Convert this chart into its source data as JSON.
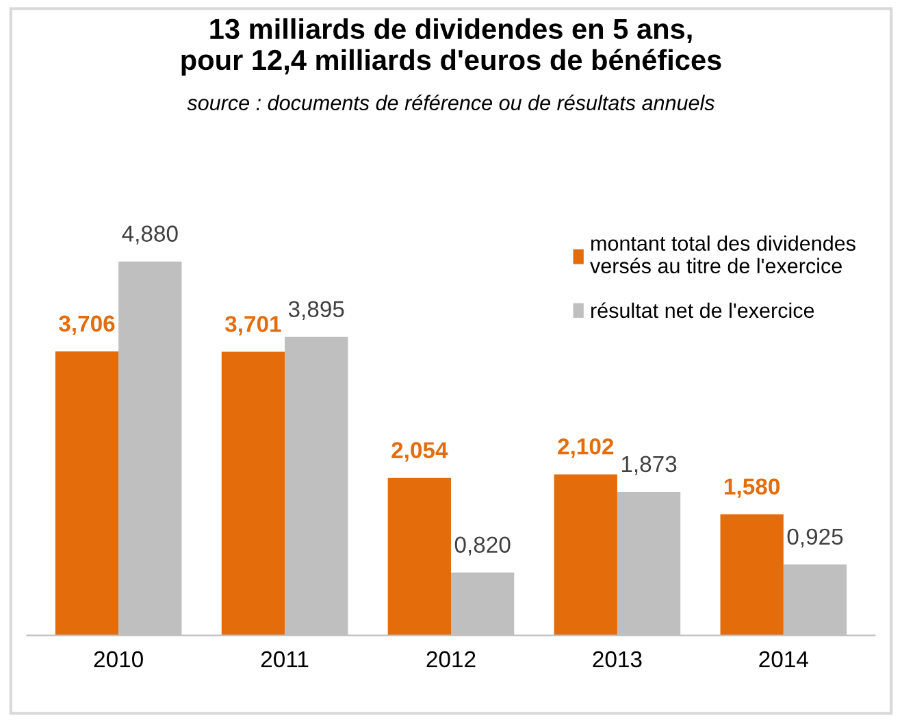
{
  "chart_data": {
    "type": "bar",
    "title": "13 milliards de dividendes en 5 ans,\npour 12,4 milliards d'euros de bénéfices",
    "subtitle": "source : documents de référence ou de résultats annuels",
    "categories": [
      "2010",
      "2011",
      "2012",
      "2013",
      "2014"
    ],
    "series": [
      {
        "name": "montant total des dividendes\nversés au titre de l'exercice",
        "color": "#e46c0a",
        "values": [
          3.706,
          3.701,
          2.054,
          2.102,
          1.58
        ],
        "value_labels": [
          "3,706",
          "3,701",
          "2,054",
          "2,102",
          "1,580"
        ]
      },
      {
        "name": "résultat net de l'exercice",
        "color": "#bfbfbf",
        "values": [
          4.88,
          3.895,
          0.82,
          1.873,
          0.925
        ],
        "value_labels": [
          "4,880",
          "3,895",
          "0,820",
          "1,873",
          "0,925"
        ]
      }
    ],
    "legend": "top right",
    "grid": false
  }
}
